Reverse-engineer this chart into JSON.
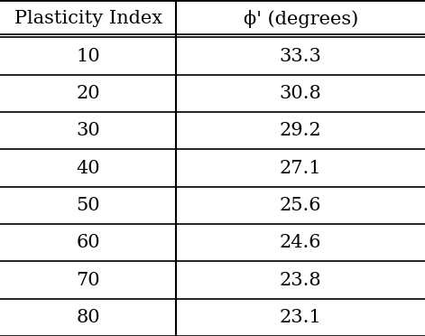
{
  "col1_header": "Plasticity Index",
  "col2_header": "ϕ' (degrees)",
  "rows": [
    [
      "10",
      "33.3"
    ],
    [
      "20",
      "30.8"
    ],
    [
      "30",
      "29.2"
    ],
    [
      "40",
      "27.1"
    ],
    [
      "50",
      "25.6"
    ],
    [
      "60",
      "24.6"
    ],
    [
      "70",
      "23.8"
    ],
    [
      "80",
      "23.1"
    ]
  ],
  "background_color": "#ffffff",
  "text_color": "#000000",
  "line_color": "#000000",
  "header_fontsize": 15,
  "cell_fontsize": 15,
  "fig_width": 4.71,
  "fig_height": 3.72,
  "dpi": 100,
  "col_split": 0.415
}
